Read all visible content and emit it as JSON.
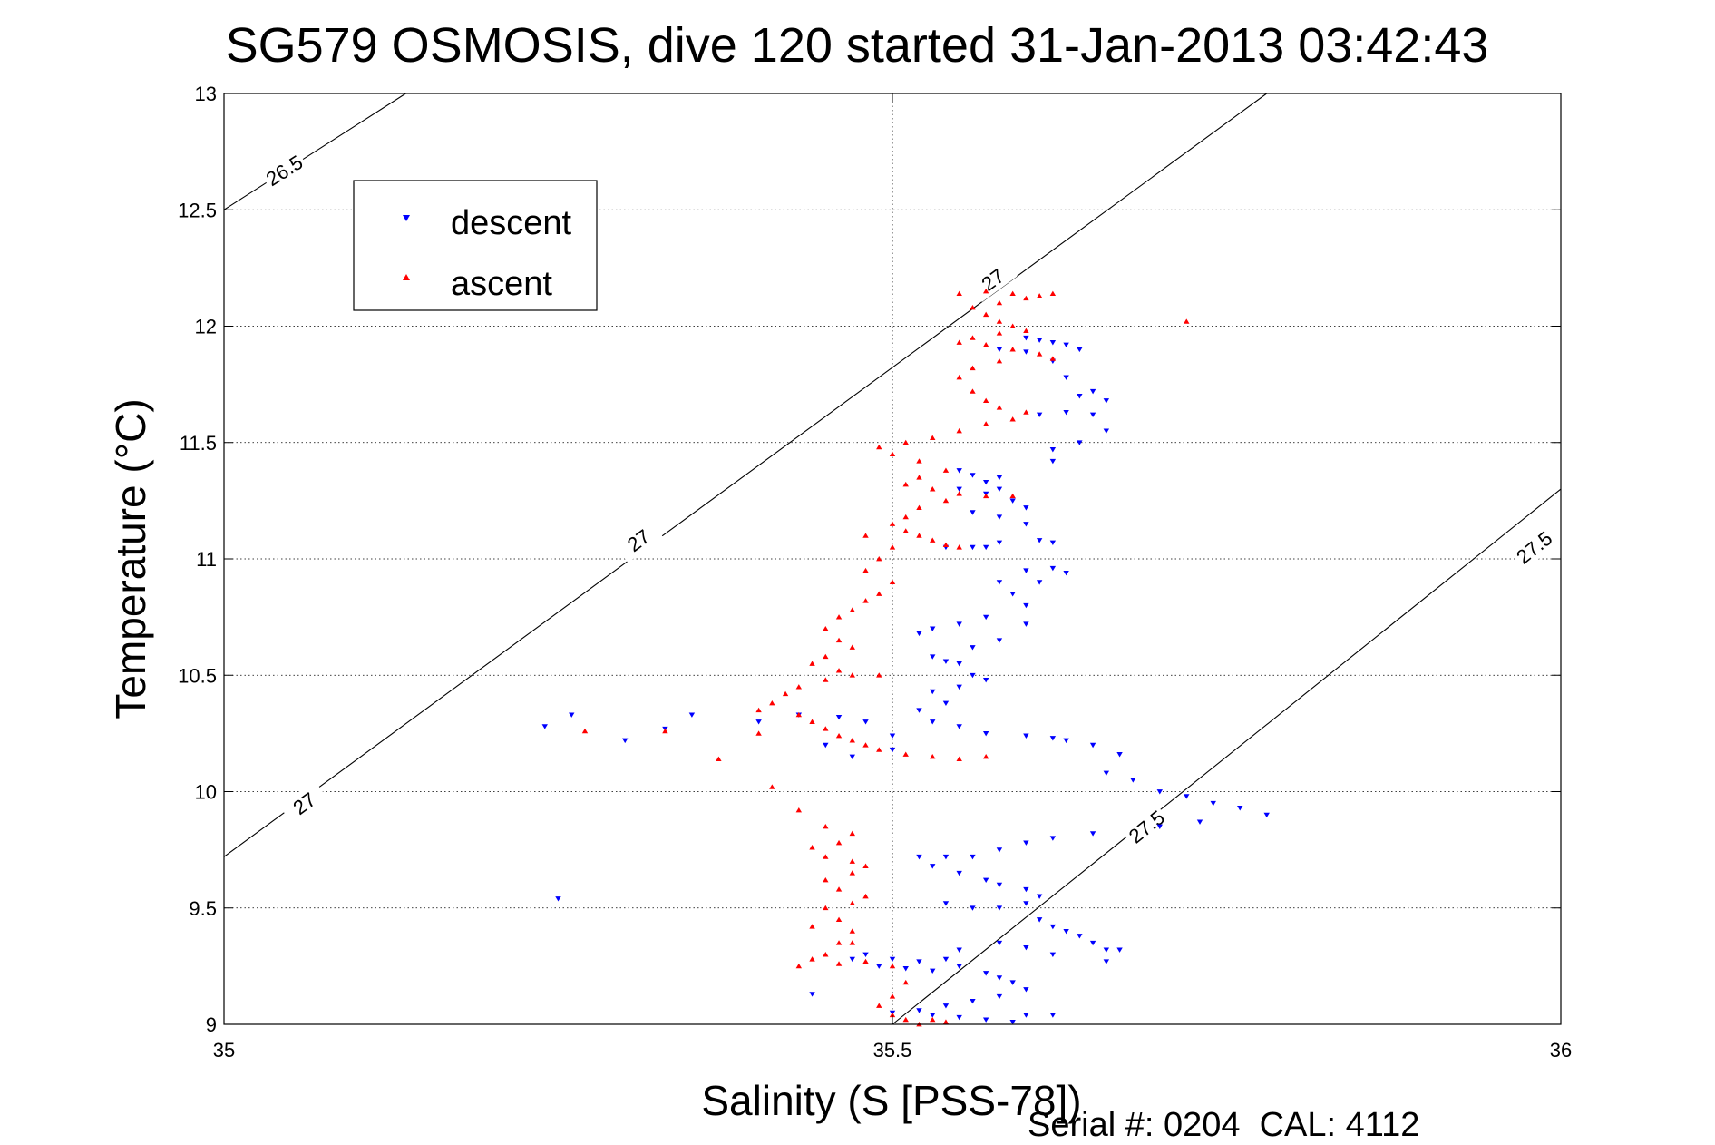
{
  "chart_data": {
    "type": "scatter",
    "title": "SG579 OSMOSIS, dive 120 started 31-Jan-2013 03:42:43",
    "xlabel": "Salinity (S [PSS-78])",
    "ylabel": "Temperature (°C)",
    "xlim": [
      35,
      36
    ],
    "ylim": [
      9,
      13
    ],
    "xticks": [
      35,
      35.5,
      36
    ],
    "xtick_labels": [
      "35",
      "35.5",
      "36"
    ],
    "yticks": [
      9,
      9.5,
      10,
      10.5,
      11,
      11.5,
      12,
      12.5,
      13
    ],
    "ytick_labels": [
      "9",
      "9.5",
      "10",
      "10.5",
      "11",
      "11.5",
      "12",
      "12.5",
      "13"
    ],
    "grid": true,
    "legend": "top-left",
    "footer": "Serial #: 0204  CAL: 4112",
    "density_contours": [
      {
        "label": "26.5",
        "points": [
          [
            35.0,
            12.5
          ],
          [
            35.136,
            13.0
          ]
        ],
        "label_positions": [
          [
            35.045,
            12.67
          ]
        ]
      },
      {
        "label": "27",
        "points": [
          [
            35.0,
            9.72
          ],
          [
            35.78,
            13.0
          ]
        ],
        "label_positions": [
          [
            35.06,
            9.95
          ],
          [
            35.31,
            11.08
          ],
          [
            35.575,
            12.2
          ]
        ]
      },
      {
        "label": "27.5",
        "points": [
          [
            35.5,
            9.0
          ],
          [
            36.0,
            11.3
          ]
        ],
        "label_positions": [
          [
            35.69,
            9.85
          ],
          [
            35.98,
            11.05
          ]
        ]
      }
    ],
    "series": [
      {
        "name": "descent",
        "color": "#0000ff",
        "marker": "triangle-down",
        "points": [
          [
            35.6,
            11.95
          ],
          [
            35.61,
            11.94
          ],
          [
            35.62,
            11.93
          ],
          [
            35.63,
            11.92
          ],
          [
            35.64,
            11.9
          ],
          [
            35.6,
            11.89
          ],
          [
            35.58,
            11.9
          ],
          [
            35.62,
            11.85
          ],
          [
            35.63,
            11.78
          ],
          [
            35.64,
            11.7
          ],
          [
            35.65,
            11.62
          ],
          [
            35.66,
            11.55
          ],
          [
            35.64,
            11.5
          ],
          [
            35.62,
            11.47
          ],
          [
            35.61,
            11.62
          ],
          [
            35.63,
            11.63
          ],
          [
            35.65,
            11.72
          ],
          [
            35.66,
            11.68
          ],
          [
            35.62,
            11.42
          ],
          [
            35.55,
            11.38
          ],
          [
            35.56,
            11.36
          ],
          [
            35.57,
            11.33
          ],
          [
            35.58,
            11.35
          ],
          [
            35.55,
            11.3
          ],
          [
            35.57,
            11.28
          ],
          [
            35.58,
            11.3
          ],
          [
            35.59,
            11.25
          ],
          [
            35.6,
            11.22
          ],
          [
            35.56,
            11.2
          ],
          [
            35.58,
            11.18
          ],
          [
            35.6,
            11.15
          ],
          [
            35.61,
            11.08
          ],
          [
            35.58,
            11.07
          ],
          [
            35.56,
            11.05
          ],
          [
            35.54,
            11.05
          ],
          [
            35.57,
            11.05
          ],
          [
            35.62,
            11.07
          ],
          [
            35.6,
            10.95
          ],
          [
            35.61,
            10.9
          ],
          [
            35.62,
            10.96
          ],
          [
            35.63,
            10.94
          ],
          [
            35.58,
            10.9
          ],
          [
            35.59,
            10.85
          ],
          [
            35.6,
            10.8
          ],
          [
            35.6,
            10.72
          ],
          [
            35.57,
            10.75
          ],
          [
            35.55,
            10.72
          ],
          [
            35.53,
            10.7
          ],
          [
            35.52,
            10.68
          ],
          [
            35.56,
            10.62
          ],
          [
            35.58,
            10.65
          ],
          [
            35.53,
            10.58
          ],
          [
            35.54,
            10.56
          ],
          [
            35.55,
            10.55
          ],
          [
            35.56,
            10.5
          ],
          [
            35.57,
            10.48
          ],
          [
            35.55,
            10.45
          ],
          [
            35.53,
            10.43
          ],
          [
            35.54,
            10.38
          ],
          [
            35.52,
            10.35
          ],
          [
            35.53,
            10.3
          ],
          [
            35.55,
            10.28
          ],
          [
            35.57,
            10.25
          ],
          [
            35.6,
            10.24
          ],
          [
            35.62,
            10.23
          ],
          [
            35.63,
            10.22
          ],
          [
            35.65,
            10.2
          ],
          [
            35.67,
            10.16
          ],
          [
            35.5,
            10.24
          ],
          [
            35.48,
            10.3
          ],
          [
            35.46,
            10.32
          ],
          [
            35.43,
            10.33
          ],
          [
            35.4,
            10.3
          ],
          [
            35.35,
            10.33
          ],
          [
            35.33,
            10.27
          ],
          [
            35.3,
            10.22
          ],
          [
            35.26,
            10.33
          ],
          [
            35.24,
            10.28
          ],
          [
            35.47,
            10.15
          ],
          [
            35.5,
            10.18
          ],
          [
            35.45,
            10.2
          ],
          [
            35.66,
            10.08
          ],
          [
            35.68,
            10.05
          ],
          [
            35.7,
            10.0
          ],
          [
            35.72,
            9.98
          ],
          [
            35.74,
            9.95
          ],
          [
            35.76,
            9.93
          ],
          [
            35.78,
            9.9
          ],
          [
            35.73,
            9.87
          ],
          [
            35.7,
            9.85
          ],
          [
            35.65,
            9.82
          ],
          [
            35.62,
            9.8
          ],
          [
            35.6,
            9.78
          ],
          [
            35.58,
            9.75
          ],
          [
            35.56,
            9.72
          ],
          [
            35.54,
            9.72
          ],
          [
            35.52,
            9.72
          ],
          [
            35.53,
            9.68
          ],
          [
            35.55,
            9.65
          ],
          [
            35.57,
            9.62
          ],
          [
            35.58,
            9.6
          ],
          [
            35.6,
            9.58
          ],
          [
            35.61,
            9.55
          ],
          [
            35.6,
            9.52
          ],
          [
            35.58,
            9.5
          ],
          [
            35.56,
            9.5
          ],
          [
            35.54,
            9.52
          ],
          [
            35.25,
            9.54
          ],
          [
            35.61,
            9.45
          ],
          [
            35.62,
            9.42
          ],
          [
            35.63,
            9.4
          ],
          [
            35.64,
            9.38
          ],
          [
            35.65,
            9.35
          ],
          [
            35.66,
            9.32
          ],
          [
            35.62,
            9.3
          ],
          [
            35.6,
            9.33
          ],
          [
            35.58,
            9.35
          ],
          [
            35.55,
            9.32
          ],
          [
            35.54,
            9.28
          ],
          [
            35.52,
            9.27
          ],
          [
            35.5,
            9.28
          ],
          [
            35.48,
            9.3
          ],
          [
            35.47,
            9.28
          ],
          [
            35.49,
            9.25
          ],
          [
            35.51,
            9.24
          ],
          [
            35.53,
            9.23
          ],
          [
            35.55,
            9.25
          ],
          [
            35.57,
            9.22
          ],
          [
            35.58,
            9.2
          ],
          [
            35.59,
            9.18
          ],
          [
            35.6,
            9.15
          ],
          [
            35.58,
            9.12
          ],
          [
            35.56,
            9.1
          ],
          [
            35.54,
            9.08
          ],
          [
            35.52,
            9.06
          ],
          [
            35.5,
            9.05
          ],
          [
            35.53,
            9.04
          ],
          [
            35.55,
            9.03
          ],
          [
            35.57,
            9.02
          ],
          [
            35.59,
            9.01
          ],
          [
            35.6,
            9.04
          ],
          [
            35.62,
            9.04
          ],
          [
            35.44,
            9.13
          ],
          [
            35.67,
            9.32
          ],
          [
            35.66,
            9.27
          ]
        ]
      },
      {
        "name": "ascent",
        "color": "#ff0000",
        "marker": "triangle-up",
        "points": [
          [
            35.55,
            12.14
          ],
          [
            35.57,
            12.15
          ],
          [
            35.59,
            12.14
          ],
          [
            35.61,
            12.13
          ],
          [
            35.62,
            12.14
          ],
          [
            35.6,
            12.12
          ],
          [
            35.58,
            12.1
          ],
          [
            35.56,
            12.08
          ],
          [
            35.57,
            12.05
          ],
          [
            35.58,
            12.02
          ],
          [
            35.59,
            12.0
          ],
          [
            35.6,
            11.98
          ],
          [
            35.58,
            11.97
          ],
          [
            35.56,
            11.95
          ],
          [
            35.55,
            11.93
          ],
          [
            35.57,
            11.92
          ],
          [
            35.59,
            11.9
          ],
          [
            35.61,
            11.88
          ],
          [
            35.62,
            11.86
          ],
          [
            35.58,
            11.85
          ],
          [
            35.56,
            11.82
          ],
          [
            35.55,
            11.78
          ],
          [
            35.56,
            11.72
          ],
          [
            35.57,
            11.68
          ],
          [
            35.58,
            11.65
          ],
          [
            35.6,
            11.63
          ],
          [
            35.59,
            11.6
          ],
          [
            35.57,
            11.58
          ],
          [
            35.55,
            11.55
          ],
          [
            35.53,
            11.52
          ],
          [
            35.51,
            11.5
          ],
          [
            35.49,
            11.48
          ],
          [
            35.5,
            11.45
          ],
          [
            35.52,
            11.42
          ],
          [
            35.54,
            11.38
          ],
          [
            35.52,
            11.35
          ],
          [
            35.51,
            11.32
          ],
          [
            35.53,
            11.3
          ],
          [
            35.55,
            11.28
          ],
          [
            35.57,
            11.27
          ],
          [
            35.59,
            11.27
          ],
          [
            35.54,
            11.25
          ],
          [
            35.52,
            11.22
          ],
          [
            35.51,
            11.18
          ],
          [
            35.5,
            11.15
          ],
          [
            35.51,
            11.12
          ],
          [
            35.52,
            11.1
          ],
          [
            35.53,
            11.08
          ],
          [
            35.54,
            11.06
          ],
          [
            35.55,
            11.05
          ],
          [
            35.5,
            11.05
          ],
          [
            35.49,
            11.0
          ],
          [
            35.48,
            10.95
          ],
          [
            35.5,
            10.9
          ],
          [
            35.49,
            10.85
          ],
          [
            35.48,
            10.82
          ],
          [
            35.47,
            10.78
          ],
          [
            35.46,
            10.75
          ],
          [
            35.45,
            10.7
          ],
          [
            35.46,
            10.65
          ],
          [
            35.47,
            10.62
          ],
          [
            35.45,
            10.58
          ],
          [
            35.44,
            10.55
          ],
          [
            35.46,
            10.52
          ],
          [
            35.47,
            10.5
          ],
          [
            35.45,
            10.48
          ],
          [
            35.43,
            10.45
          ],
          [
            35.42,
            10.42
          ],
          [
            35.41,
            10.38
          ],
          [
            35.4,
            10.35
          ],
          [
            35.43,
            10.33
          ],
          [
            35.44,
            10.3
          ],
          [
            35.45,
            10.27
          ],
          [
            35.46,
            10.24
          ],
          [
            35.47,
            10.22
          ],
          [
            35.48,
            10.2
          ],
          [
            35.49,
            10.18
          ],
          [
            35.51,
            10.16
          ],
          [
            35.53,
            10.15
          ],
          [
            35.55,
            10.14
          ],
          [
            35.57,
            10.15
          ],
          [
            35.4,
            10.25
          ],
          [
            35.33,
            10.26
          ],
          [
            35.27,
            10.26
          ],
          [
            35.37,
            10.14
          ],
          [
            35.41,
            10.02
          ],
          [
            35.43,
            9.92
          ],
          [
            35.45,
            9.85
          ],
          [
            35.47,
            9.82
          ],
          [
            35.46,
            9.78
          ],
          [
            35.44,
            9.76
          ],
          [
            35.45,
            9.72
          ],
          [
            35.47,
            9.7
          ],
          [
            35.48,
            9.68
          ],
          [
            35.47,
            9.65
          ],
          [
            35.45,
            9.62
          ],
          [
            35.46,
            9.58
          ],
          [
            35.48,
            9.55
          ],
          [
            35.47,
            9.52
          ],
          [
            35.45,
            9.5
          ],
          [
            35.46,
            9.45
          ],
          [
            35.47,
            9.4
          ],
          [
            35.46,
            9.35
          ],
          [
            35.45,
            9.3
          ],
          [
            35.44,
            9.28
          ],
          [
            35.43,
            9.25
          ],
          [
            35.46,
            9.26
          ],
          [
            35.48,
            9.27
          ],
          [
            35.5,
            9.25
          ],
          [
            35.51,
            9.18
          ],
          [
            35.5,
            9.12
          ],
          [
            35.49,
            9.08
          ],
          [
            35.5,
            9.04
          ],
          [
            35.51,
            9.02
          ],
          [
            35.52,
            9.0
          ],
          [
            35.53,
            9.02
          ],
          [
            35.54,
            9.01
          ],
          [
            35.47,
            9.35
          ],
          [
            35.44,
            9.42
          ],
          [
            35.72,
            12.02
          ],
          [
            35.48,
            11.1
          ],
          [
            35.49,
            10.5
          ]
        ]
      }
    ]
  },
  "legend": {
    "descent_label": "descent",
    "ascent_label": "ascent"
  }
}
